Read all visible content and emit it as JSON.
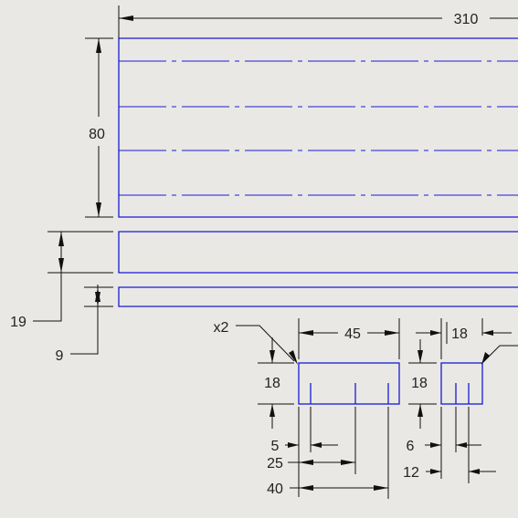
{
  "drawing": {
    "dimensions": {
      "overall_length": "310",
      "top_height": "80",
      "middle_height": "19",
      "bottom_height": "9",
      "quantity_note": "x2",
      "slot_width_left": "45",
      "slot_height_left": "18",
      "slot_width_right": "18",
      "slot_height_right": "18",
      "pos_5": "5",
      "pos_25": "25",
      "pos_40": "40",
      "pos_6": "6",
      "pos_12": "12"
    },
    "colors": {
      "background": "#e9e8e4",
      "geometry": "#1a1ad6",
      "dimension": "#111111"
    }
  }
}
